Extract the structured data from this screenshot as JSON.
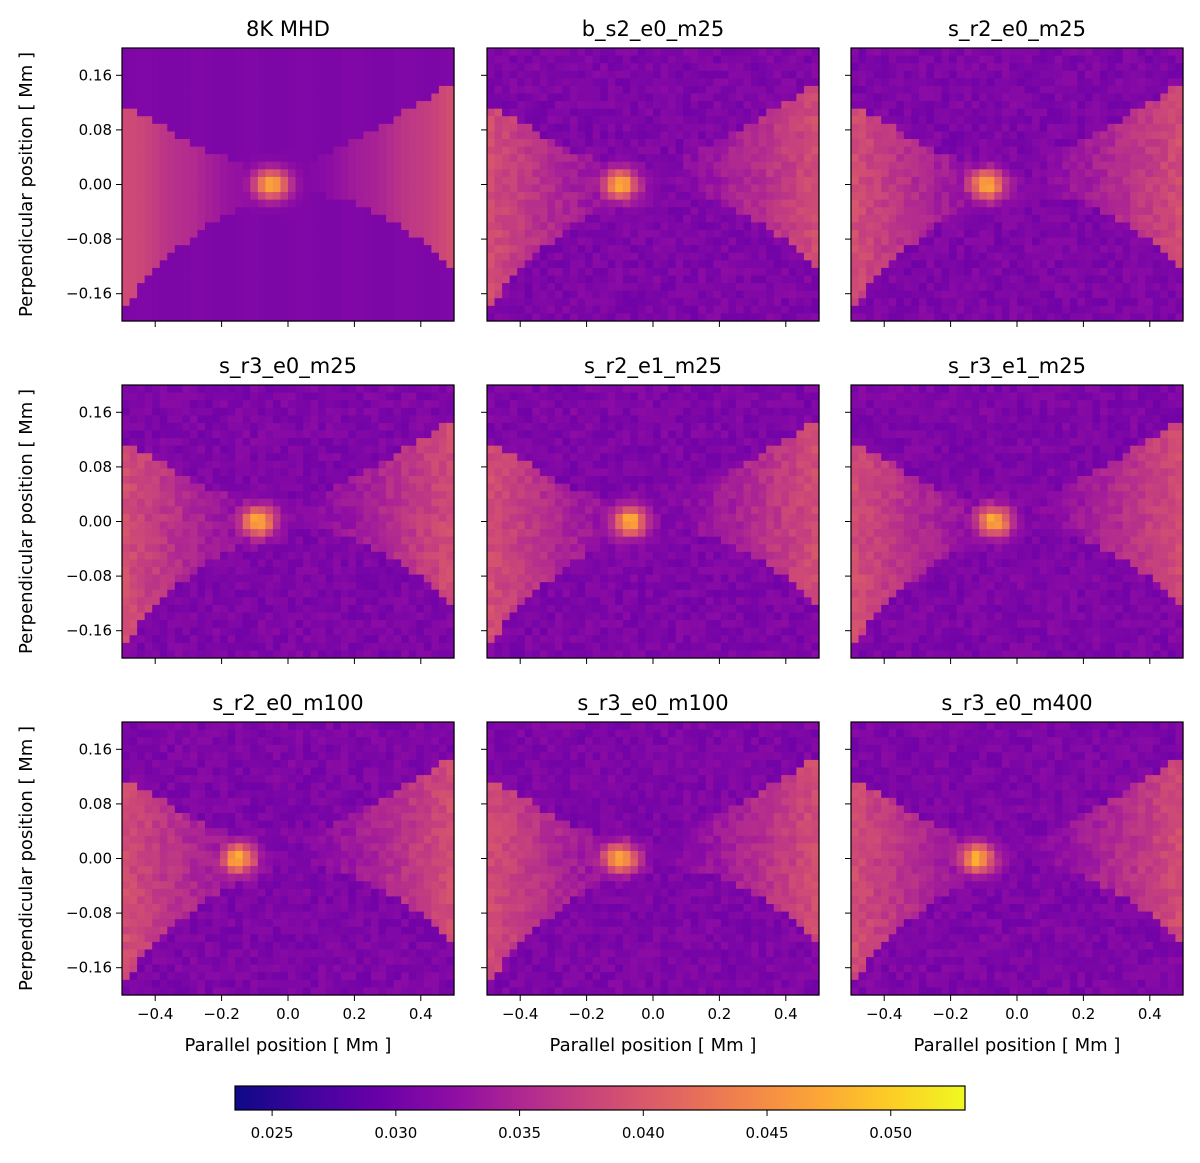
{
  "chart_data": {
    "type": "heatmap",
    "layout": "3x3 grid of panels sharing x and y axes, one shared horizontal colorbar",
    "panels": [
      {
        "title": "8K MHD",
        "blob_center": [
          -0.05,
          0.0
        ],
        "smooth": true
      },
      {
        "title": "b_s2_e0_m25",
        "blob_center": [
          -0.1,
          0.0
        ]
      },
      {
        "title": "s_r2_e0_m25",
        "blob_center": [
          -0.09,
          0.0
        ]
      },
      {
        "title": "s_r3_e0_m25",
        "blob_center": [
          -0.09,
          0.0
        ]
      },
      {
        "title": "s_r2_e1_m25",
        "blob_center": [
          -0.07,
          0.0
        ]
      },
      {
        "title": "s_r3_e1_m25",
        "blob_center": [
          -0.07,
          0.0
        ]
      },
      {
        "title": "s_r2_e0_m100",
        "blob_center": [
          -0.15,
          0.0
        ]
      },
      {
        "title": "s_r3_e0_m100",
        "blob_center": [
          -0.1,
          0.0
        ]
      },
      {
        "title": "s_r3_e0_m400",
        "blob_center": [
          -0.12,
          0.0
        ]
      }
    ],
    "xlabel": "Parallel position [ Mm ]",
    "ylabel": "Perpendicular position [ Mm ]",
    "xlim": [
      -0.5,
      0.5
    ],
    "ylim": [
      -0.2,
      0.2
    ],
    "xticks": [
      -0.4,
      -0.2,
      0.0,
      0.2,
      0.4
    ],
    "xtick_labels": [
      "−0.4",
      "−0.2",
      "0.0",
      "0.2",
      "0.4"
    ],
    "yticks": [
      0.16,
      0.08,
      0.0,
      -0.08,
      -0.16
    ],
    "ytick_labels": [
      "0.16",
      "0.08",
      "0.00",
      "−0.08",
      "−0.16"
    ],
    "colorbar": {
      "colormap": "plasma",
      "range": [
        0.0235,
        0.053
      ],
      "ticks": [
        0.025,
        0.03,
        0.035,
        0.04,
        0.045,
        0.05
      ],
      "tick_labels": [
        "0.025",
        "0.030",
        "0.035",
        "0.040",
        "0.045",
        "0.050"
      ],
      "orientation": "horizontal",
      "placement": "bottom"
    },
    "colors": {
      "dark": "#2d069a",
      "mid": "#8c1aa5",
      "bright": "#f89541",
      "max": "#f0f921"
    }
  }
}
